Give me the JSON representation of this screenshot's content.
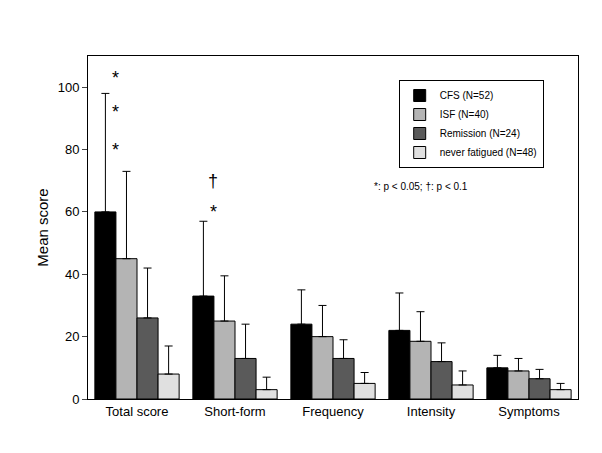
{
  "chart_data": {
    "type": "bar",
    "y_label": "Mean score",
    "categories": [
      "Total score",
      "Short-form",
      "Frequency",
      "Intensity",
      "Symptoms"
    ],
    "series": [
      {
        "name": "CFS (N=52)",
        "color": "#000000",
        "values": [
          60,
          33,
          24,
          22,
          10
        ],
        "errors": [
          38,
          24,
          11,
          12,
          4
        ]
      },
      {
        "name": "ISF (N=40)",
        "color": "#b4b4b4",
        "values": [
          45,
          25,
          20,
          18.5,
          9
        ],
        "errors": [
          28,
          14.5,
          10,
          9.5,
          4
        ]
      },
      {
        "name": "Remission (N=24)",
        "color": "#5a5a5a",
        "values": [
          26,
          13,
          13,
          12,
          6.5
        ],
        "errors": [
          16,
          11,
          6,
          6,
          3
        ]
      },
      {
        "name": "never fatigued (N=48)",
        "color": "#e0e0e0",
        "values": [
          8,
          3,
          5,
          4.5,
          3
        ],
        "errors": [
          9,
          4,
          3.5,
          4.5,
          2
        ]
      }
    ],
    "ylim": [
      0,
      110
    ],
    "yticks": [
      0,
      20,
      40,
      60,
      80,
      100
    ],
    "grid": false,
    "legend": "top right",
    "annotations": [
      {
        "text": "*",
        "category": "Total score",
        "y": 103
      },
      {
        "text": "*",
        "category": "Total score",
        "y": 92
      },
      {
        "text": "*",
        "category": "Total score",
        "y": 80
      },
      {
        "text": "†",
        "category": "Short-form",
        "y": 70
      },
      {
        "text": "*",
        "category": "Short-form",
        "y": 60
      }
    ],
    "note": "*: p < 0.05; †: p < 0.1"
  }
}
